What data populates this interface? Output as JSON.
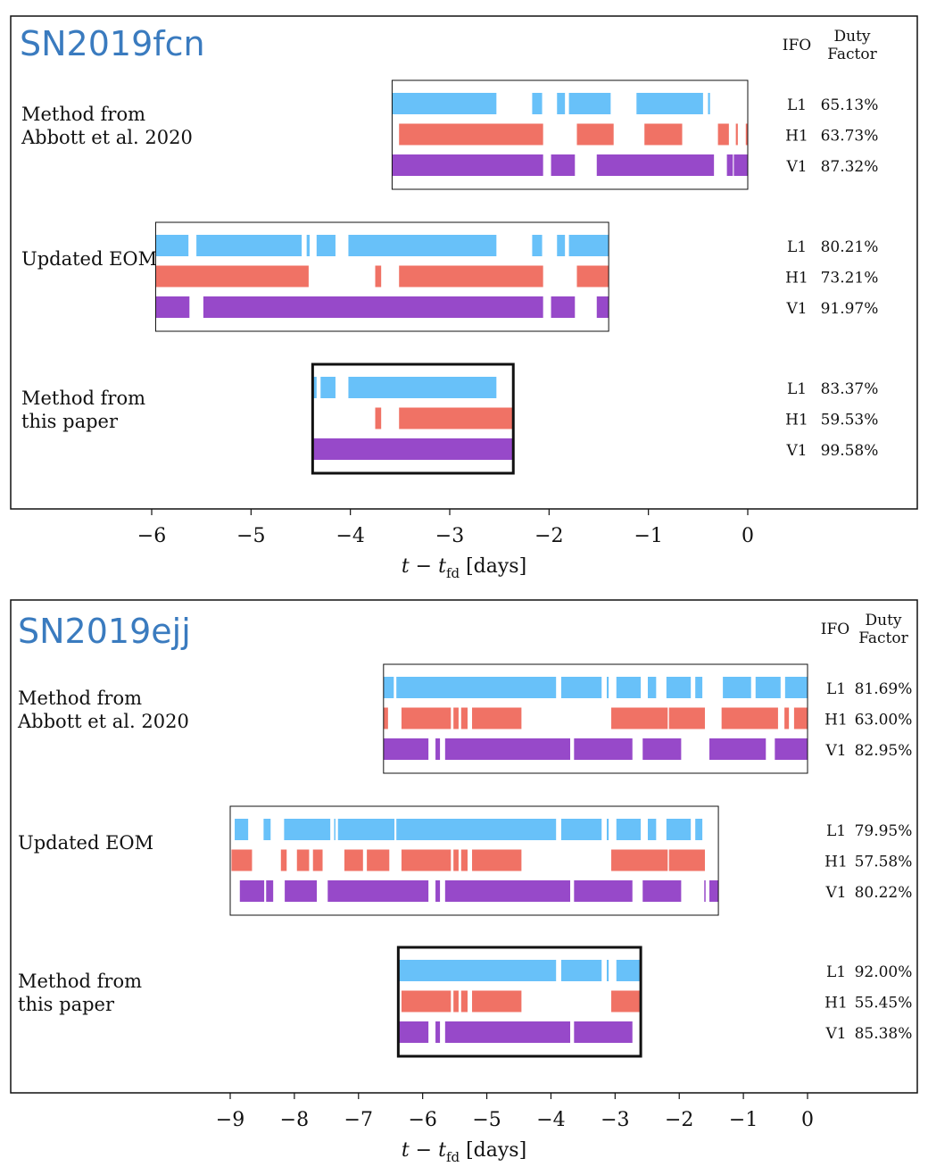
{
  "colors": {
    "L1": "#5bbcf8",
    "H1": "#ef6658",
    "V1": "#8e3ac4"
  },
  "header": {
    "ifo": "IFO",
    "duty1": "Duty",
    "duty2": "Factor"
  },
  "chart_data": [
    {
      "type": "timeline",
      "title": "SN2019fcn",
      "xlabel": "t − t_fd [days]",
      "xlim": [
        -6.15,
        0.1
      ],
      "xticks": [
        -6,
        -5,
        -4,
        -3,
        -2,
        -1,
        0
      ],
      "groups": [
        {
          "label": [
            "Method from",
            "Abbott et al. 2020"
          ],
          "range": [
            -3.58,
            0
          ],
          "highlight": false,
          "rows": [
            {
              "ifo": "L1",
              "duty": "65.13%",
              "segments": [
                [
                  -3.58,
                  -2.53
                ],
                [
                  -2.17,
                  -2.07
                ],
                [
                  -1.92,
                  -1.84
                ],
                [
                  -1.8,
                  -1.38
                ],
                [
                  -1.12,
                  -0.45
                ],
                [
                  -0.4,
                  -0.38
                ]
              ]
            },
            {
              "ifo": "H1",
              "duty": "63.73%",
              "segments": [
                [
                  -3.51,
                  -2.06
                ],
                [
                  -1.72,
                  -1.35
                ],
                [
                  -1.04,
                  -0.66
                ],
                [
                  -0.3,
                  -0.19
                ],
                [
                  -0.12,
                  -0.1
                ],
                [
                  -0.02,
                  0
                ]
              ]
            },
            {
              "ifo": "V1",
              "duty": "87.32%",
              "segments": [
                [
                  -3.58,
                  -2.06
                ],
                [
                  -1.98,
                  -1.74
                ],
                [
                  -1.52,
                  -0.34
                ],
                [
                  -0.21,
                  -0.15
                ],
                [
                  -0.14,
                  0
                ]
              ]
            }
          ]
        },
        {
          "label": [
            "Updated EOM"
          ],
          "range": [
            -5.96,
            -1.4
          ],
          "highlight": false,
          "rows": [
            {
              "ifo": "L1",
              "duty": "80.21%",
              "segments": [
                [
                  -5.96,
                  -5.63
                ],
                [
                  -5.55,
                  -4.49
                ],
                [
                  -4.44,
                  -4.41
                ],
                [
                  -4.34,
                  -4.15
                ],
                [
                  -4.02,
                  -2.53
                ],
                [
                  -2.17,
                  -2.07
                ],
                [
                  -1.92,
                  -1.84
                ],
                [
                  -1.8,
                  -1.4
                ]
              ]
            },
            {
              "ifo": "H1",
              "duty": "73.21%",
              "segments": [
                [
                  -5.96,
                  -4.42
                ],
                [
                  -3.75,
                  -3.69
                ],
                [
                  -3.51,
                  -2.06
                ],
                [
                  -1.72,
                  -1.4
                ]
              ]
            },
            {
              "ifo": "V1",
              "duty": "91.97%",
              "segments": [
                [
                  -5.96,
                  -5.62
                ],
                [
                  -5.48,
                  -2.06
                ],
                [
                  -1.98,
                  -1.74
                ],
                [
                  -1.52,
                  -1.4
                ]
              ]
            }
          ]
        },
        {
          "label": [
            "Method from",
            "this paper"
          ],
          "range": [
            -4.38,
            -2.36
          ],
          "highlight": true,
          "rows": [
            {
              "ifo": "L1",
              "duty": "83.37%",
              "segments": [
                [
                  -4.38,
                  -4.34
                ],
                [
                  -4.3,
                  -4.15
                ],
                [
                  -4.02,
                  -2.53
                ]
              ]
            },
            {
              "ifo": "H1",
              "duty": "59.53%",
              "segments": [
                [
                  -3.75,
                  -3.69
                ],
                [
                  -3.51,
                  -2.36
                ]
              ]
            },
            {
              "ifo": "V1",
              "duty": "99.58%",
              "segments": [
                [
                  -4.38,
                  -2.36
                ]
              ]
            }
          ]
        }
      ]
    },
    {
      "type": "timeline",
      "title": "SN2019ejj",
      "xlabel": "t − t_fd [days]",
      "xlim": [
        -9.75,
        0.5
      ],
      "xticks": [
        -9,
        -8,
        -7,
        -6,
        -5,
        -4,
        -3,
        -2,
        -1,
        0
      ],
      "groups": [
        {
          "label": [
            "Method from",
            "Abbott et al. 2020"
          ],
          "range": [
            -6.61,
            0
          ],
          "highlight": false,
          "rows": [
            {
              "ifo": "L1",
              "duty": "81.69%",
              "segments": [
                [
                  -6.61,
                  -6.45
                ],
                [
                  -6.41,
                  -3.92
                ],
                [
                  -3.84,
                  -3.21
                ],
                [
                  -3.13,
                  -3.1
                ],
                [
                  -2.98,
                  -2.6
                ],
                [
                  -2.49,
                  -2.36
                ],
                [
                  -2.2,
                  -1.82
                ],
                [
                  -1.75,
                  -1.64
                ],
                [
                  -1.32,
                  -0.88
                ],
                [
                  -0.81,
                  -0.42
                ],
                [
                  -0.35,
                  0
                ]
              ]
            },
            {
              "ifo": "H1",
              "duty": "63.00%",
              "segments": [
                [
                  -6.61,
                  -6.54
                ],
                [
                  -6.33,
                  -5.56
                ],
                [
                  -5.52,
                  -5.44
                ],
                [
                  -5.4,
                  -5.3
                ],
                [
                  -5.23,
                  -4.46
                ],
                [
                  -3.06,
                  -2.18
                ],
                [
                  -2.16,
                  -1.6
                ],
                [
                  -1.34,
                  -0.46
                ],
                [
                  -0.36,
                  -0.29
                ],
                [
                  -0.21,
                  0
                ]
              ]
            },
            {
              "ifo": "V1",
              "duty": "82.95%",
              "segments": [
                [
                  -6.61,
                  -5.91
                ],
                [
                  -5.8,
                  -5.73
                ],
                [
                  -5.65,
                  -3.7
                ],
                [
                  -3.64,
                  -2.73
                ],
                [
                  -2.57,
                  -1.97
                ],
                [
                  -1.53,
                  -0.65
                ],
                [
                  -0.51,
                  0
                ]
              ]
            }
          ]
        },
        {
          "label": [
            "Updated EOM"
          ],
          "range": [
            -9.0,
            -1.39
          ],
          "highlight": false,
          "rows": [
            {
              "ifo": "L1",
              "duty": "79.95%",
              "segments": [
                [
                  -8.93,
                  -8.72
                ],
                [
                  -8.48,
                  -8.37
                ],
                [
                  -8.16,
                  -7.44
                ],
                [
                  -7.38,
                  -7.36
                ],
                [
                  -7.32,
                  -6.44
                ],
                [
                  -6.41,
                  -3.92
                ],
                [
                  -3.84,
                  -3.21
                ],
                [
                  -3.13,
                  -3.1
                ],
                [
                  -2.98,
                  -2.6
                ],
                [
                  -2.49,
                  -2.36
                ],
                [
                  -2.2,
                  -1.82
                ],
                [
                  -1.75,
                  -1.64
                ]
              ]
            },
            {
              "ifo": "H1",
              "duty": "57.58%",
              "segments": [
                [
                  -8.98,
                  -8.66
                ],
                [
                  -8.21,
                  -8.12
                ],
                [
                  -7.96,
                  -7.77
                ],
                [
                  -7.71,
                  -7.56
                ],
                [
                  -7.22,
                  -6.93
                ],
                [
                  -6.87,
                  -6.52
                ],
                [
                  -6.33,
                  -5.56
                ],
                [
                  -5.52,
                  -5.44
                ],
                [
                  -5.4,
                  -5.3
                ],
                [
                  -5.23,
                  -4.46
                ],
                [
                  -3.06,
                  -2.18
                ],
                [
                  -2.16,
                  -1.6
                ]
              ]
            },
            {
              "ifo": "V1",
              "duty": "80.22%",
              "segments": [
                [
                  -8.85,
                  -8.47
                ],
                [
                  -8.44,
                  -8.33
                ],
                [
                  -8.15,
                  -7.65
                ],
                [
                  -7.48,
                  -5.91
                ],
                [
                  -5.8,
                  -5.73
                ],
                [
                  -5.65,
                  -3.7
                ],
                [
                  -3.64,
                  -2.73
                ],
                [
                  -2.57,
                  -1.97
                ],
                [
                  -1.61,
                  -1.59
                ],
                [
                  -1.53,
                  -1.39
                ]
              ]
            }
          ]
        },
        {
          "label": [
            "Method from",
            "this paper"
          ],
          "range": [
            -6.38,
            -2.6
          ],
          "highlight": true,
          "rows": [
            {
              "ifo": "L1",
              "duty": "92.00%",
              "segments": [
                [
                  -6.38,
                  -3.92
                ],
                [
                  -3.84,
                  -3.21
                ],
                [
                  -3.13,
                  -3.1
                ],
                [
                  -2.98,
                  -2.6
                ]
              ]
            },
            {
              "ifo": "H1",
              "duty": "55.45%",
              "segments": [
                [
                  -6.33,
                  -5.56
                ],
                [
                  -5.52,
                  -5.44
                ],
                [
                  -5.4,
                  -5.3
                ],
                [
                  -5.23,
                  -4.46
                ],
                [
                  -3.06,
                  -2.6
                ]
              ]
            },
            {
              "ifo": "V1",
              "duty": "85.38%",
              "segments": [
                [
                  -6.38,
                  -5.91
                ],
                [
                  -5.8,
                  -5.73
                ],
                [
                  -5.65,
                  -3.7
                ],
                [
                  -3.64,
                  -2.73
                ]
              ]
            }
          ]
        }
      ]
    }
  ]
}
